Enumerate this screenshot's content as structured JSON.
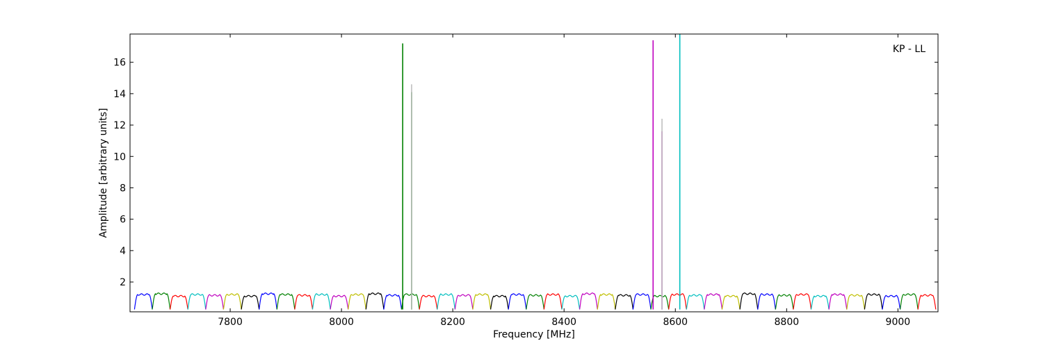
{
  "chart_data": {
    "type": "line",
    "title": "",
    "annotation": "KP - LL",
    "xlabel": "Frequency [MHz]",
    "ylabel": "Amplitude [arbitrary units]",
    "xlim": [
      7620,
      9072
    ],
    "ylim": [
      0.1,
      17.8
    ],
    "x_ticks": [
      7800,
      8000,
      8200,
      8400,
      8600,
      8800,
      9000
    ],
    "x_tick_labels": [
      "7800",
      "8000",
      "8200",
      "8400",
      "8600",
      "8800",
      "9000"
    ],
    "y_ticks": [
      2,
      4,
      6,
      8,
      10,
      12,
      14,
      16
    ],
    "y_tick_labels": [
      "2",
      "4",
      "6",
      "8",
      "10",
      "12",
      "14",
      "16"
    ],
    "grid": false,
    "legend": false,
    "channel_cycle_colors": [
      "#0000ff",
      "#008000",
      "#ff0000",
      "#00bfbf",
      "#bf00bf",
      "#bfbf00",
      "#000000"
    ],
    "channel_start_mhz": 7628,
    "channel_width_mhz": 32,
    "channel_count": 45,
    "channel_profile": {
      "floor": 0.25,
      "plateau": [
        1.2,
        1.25,
        1.1,
        1.2,
        1.15,
        1.2,
        1.1,
        1.25,
        1.2,
        1.15,
        1.2,
        1.1,
        1.2,
        1.25,
        1.15,
        1.2,
        1.1,
        1.2,
        1.15,
        1.2,
        1.1,
        1.2,
        1.15,
        1.2,
        1.1,
        1.25,
        1.2,
        1.15,
        1.2,
        1.1,
        1.2,
        1.15,
        1.2,
        1.1,
        1.25,
        1.2,
        1.15,
        1.2,
        1.1,
        1.2,
        1.15,
        1.2,
        1.1,
        1.2,
        1.15
      ]
    },
    "spikes": [
      {
        "x": 8110,
        "y": 17.2,
        "color": "#008000"
      },
      {
        "x": 8126,
        "y": 14.1,
        "color": "#008000"
      },
      {
        "x": 8126,
        "y": 14.6,
        "color": "#bfbfbf"
      },
      {
        "x": 8560,
        "y": 17.4,
        "color": "#bf00bf"
      },
      {
        "x": 8576,
        "y": 11.6,
        "color": "#bf00bf"
      },
      {
        "x": 8576,
        "y": 12.4,
        "color": "#bfbfbf"
      },
      {
        "x": 8608,
        "y": 17.8,
        "color": "#00bfbf"
      }
    ]
  }
}
